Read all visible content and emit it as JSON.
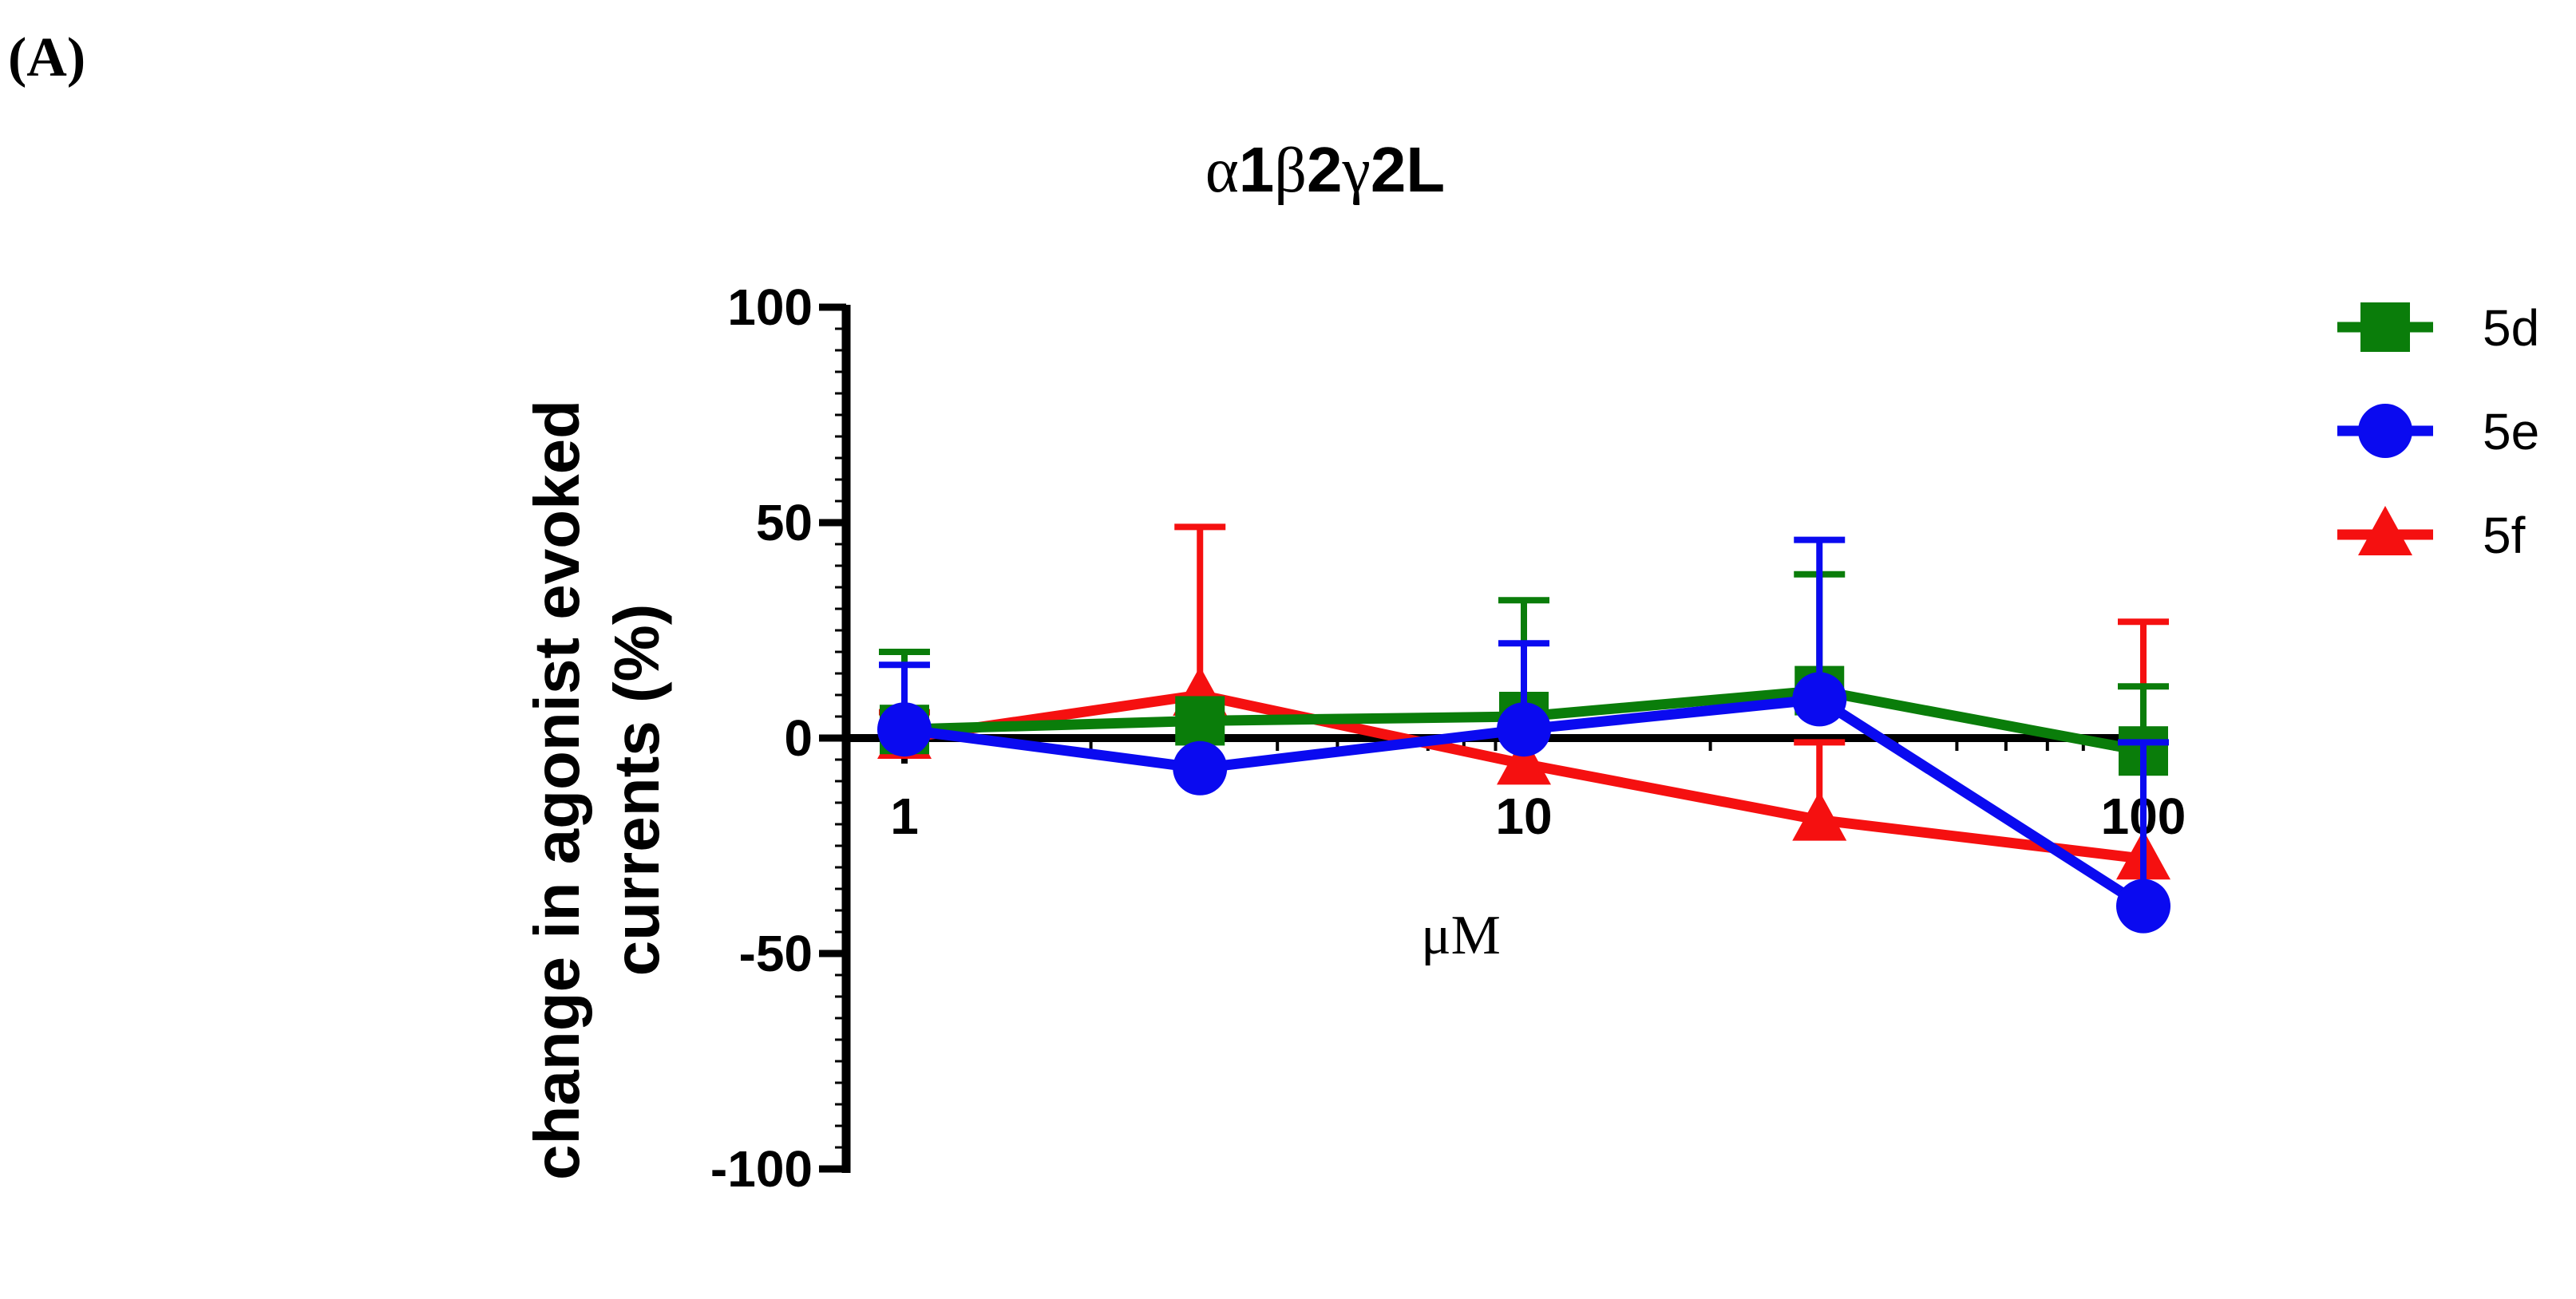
{
  "panel_label": "(A)",
  "chart_data": {
    "type": "line",
    "title": {
      "greek_alpha": "α",
      "subunit_alpha": "1",
      "greek_beta": "β",
      "subunit_beta": "2",
      "greek_gamma": "γ",
      "subunit_gamma": "2L"
    },
    "xlabel": "μM",
    "ylabel_line1": "change in agonist evoked",
    "ylabel_line2": "currents (%)",
    "xscale": "log",
    "xlim": [
      1,
      100
    ],
    "ylim": [
      -100,
      100
    ],
    "x_ticks": [
      {
        "value": 1,
        "label": "1"
      },
      {
        "value": 10,
        "label": "10"
      },
      {
        "value": 100,
        "label": "100"
      }
    ],
    "y_ticks": [
      {
        "value": 100,
        "label": "100"
      },
      {
        "value": 50,
        "label": "50"
      },
      {
        "value": 0,
        "label": "0"
      },
      {
        "value": -50,
        "label": "-50"
      },
      {
        "value": -100,
        "label": "-100"
      }
    ],
    "legend_position": "right",
    "series": [
      {
        "name": "5d",
        "color": "#0a7d0a",
        "marker": "square",
        "x": [
          1,
          3,
          10,
          30,
          100
        ],
        "y": [
          2,
          4,
          5,
          11,
          -3
        ],
        "err_up": [
          18,
          0,
          27,
          27,
          15
        ]
      },
      {
        "name": "5e",
        "color": "#0a0af0",
        "marker": "circle",
        "x": [
          1,
          3,
          10,
          30,
          100
        ],
        "y": [
          2,
          -7,
          2,
          9,
          -39
        ],
        "err_up": [
          15,
          0,
          20,
          37,
          38
        ]
      },
      {
        "name": "5f",
        "color": "#f51010",
        "marker": "triangle",
        "x": [
          1,
          3,
          10,
          30,
          100
        ],
        "y": [
          0,
          10,
          -6,
          -19,
          -28
        ],
        "err_up": [
          6,
          39,
          0,
          18,
          55
        ]
      }
    ]
  }
}
